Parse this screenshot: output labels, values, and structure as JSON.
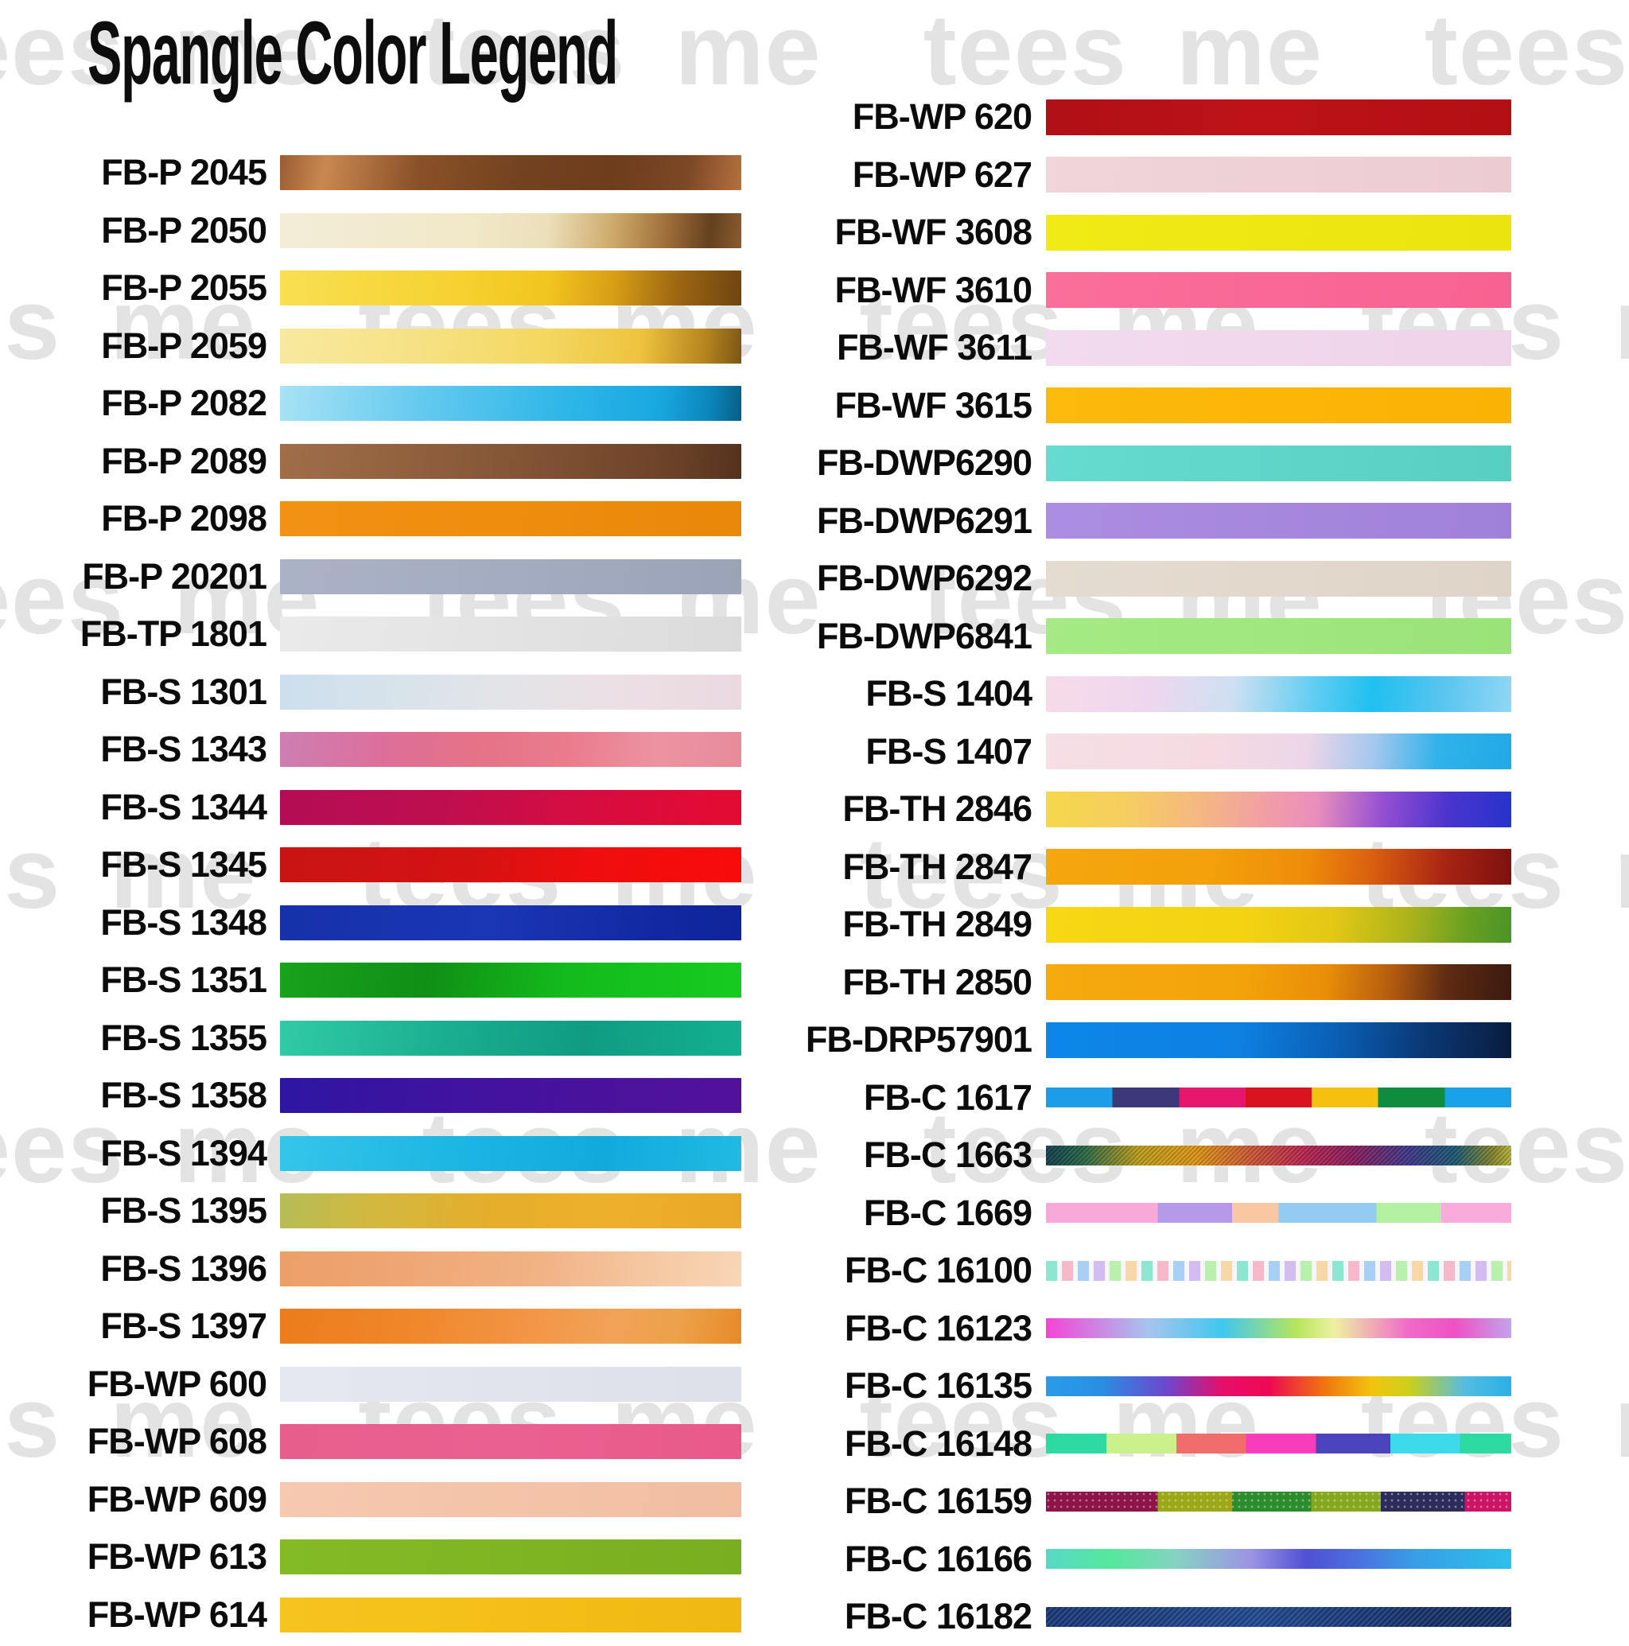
{
  "title": "Spangle Color Legend",
  "watermark": {
    "text": "tees me",
    "color": "#e3e3e3",
    "repeats": 6
  },
  "legend": {
    "left": [
      {
        "label": "FB-P 2045",
        "height": 44,
        "background": "linear-gradient(100deg, #9a5c33 0%, #c98850 10%, #8a5128 30%, #73421f 52%, #6e3d1c 72%, #7c4826 88%, #b5713f 100%)"
      },
      {
        "label": "FB-P 2050",
        "height": 44,
        "background": "linear-gradient(96deg, #f3edd8 0%, #f1e8c8 42%, #ecdfba 58%, #cdaa6a 72%, #9c6c38 84%, #64401f 93%, #8a5c30 100%)"
      },
      {
        "label": "FB-P 2055",
        "height": 44,
        "background": "linear-gradient(96deg, #f9df52 0%, #f6d231 38%, #f2c51f 58%, #d89e16 72%, #9c6612 86%, #6e4410 100%)"
      },
      {
        "label": "FB-P 2059",
        "height": 44,
        "background": "linear-gradient(96deg, #f8e9a0 0%, #f6e182 32%, #f3d75f 58%, #eec33e 78%, #b4841e 92%, #7c5514 100%)"
      },
      {
        "label": "FB-P 2082",
        "height": 44,
        "background": "linear-gradient(96deg, #a8e2f5 0%, #62c9ee 32%, #2eb6e8 62%, #18a8e0 82%, #0b86bb 93%, #075e84 100%)"
      },
      {
        "label": "FB-P 2089",
        "height": 44,
        "background": "linear-gradient(96deg, #a06e49 0%, #8f5f3d 32%, #7d4f31 62%, #6a4128 86%, #55311d 100%)"
      },
      {
        "label": "FB-P 2098",
        "height": 44,
        "background": "linear-gradient(96deg, #f19214 0%, #ee8d0e 50%, #e9870a 100%)"
      },
      {
        "label": "FB-P 20201",
        "height": 44,
        "background": "linear-gradient(96deg, #abb2c7 0%, #a4acc2 50%, #9ba3b8 100%)"
      },
      {
        "label": "FB-TP 1801",
        "height": 44,
        "background": "linear-gradient(96deg, #eaeaea 0%, #e3e3e3 50%, #dbdbdb 100%)"
      },
      {
        "label": "FB-S 1301",
        "height": 44,
        "background": "linear-gradient(96deg, #ccdfee 0%, #d8e3ea 26%, #e4e4e8 50%, #ecdfe4 76%, #ead9e0 100%)"
      },
      {
        "label": "FB-S 1343",
        "height": 44,
        "background": "linear-gradient(96deg, #cd7fb3 0%, #dc6f9b 22%, #e57287 42%, #ea7b8d 62%, #ec93a2 82%, #e78b9b 100%)"
      },
      {
        "label": "FB-S 1344",
        "height": 44,
        "background": "linear-gradient(96deg, #b30d55 0%, #bf0e4f 36%, #d30d42 62%, #df0b37 86%, #e20b33 100%)"
      },
      {
        "label": "FB-S 1345",
        "height": 44,
        "background": "linear-gradient(96deg, #c91414 0%, #d51212 42%, #ee0e0e 66%, #f90b0b 100%)"
      },
      {
        "label": "FB-S 1348",
        "height": 44,
        "background": "linear-gradient(96deg, #1631aa 0%, #1b36b4 46%, #1128a2 82%, #0f249a 100%)"
      },
      {
        "label": "FB-S 1351",
        "height": 44,
        "background": "linear-gradient(96deg, #18a21d 0%, #108f15 32%, #13bb1c 62%, #16cb20 100%)"
      },
      {
        "label": "FB-S 1355",
        "height": 44,
        "background": "linear-gradient(96deg, #30cba6 0%, #1aae90 36%, #109c84 66%, #13b092 100%)"
      },
      {
        "label": "FB-S 1358",
        "height": 44,
        "background": "linear-gradient(96deg, #2d16a2 0%, #3f13a0 36%, #4a129c 70%, #53119a 100%)"
      },
      {
        "label": "FB-S 1394",
        "height": 44,
        "background": "linear-gradient(96deg, #35c6ea 0%, #1eb6e3 36%, #12aadd 70%, #20bae3 100%)"
      },
      {
        "label": "FB-S 1395",
        "height": 44,
        "background": "linear-gradient(96deg, #b5bd58 0%, #d2b83e 20%, #e5ae2b 46%, #eeb02b 72%, #e9a827 100%)"
      },
      {
        "label": "FB-S 1396",
        "height": 44,
        "background": "linear-gradient(96deg, #ec9f68 0%, #efa674 26%, #f1b285 56%, #f5c8a2 80%, #f8d6b6 100%)"
      },
      {
        "label": "FB-S 1397",
        "height": 44,
        "background": "linear-gradient(100deg, #ec7c1b 0%, #ef8628 26%, #f29443 52%, #f2a258 72%, #eda149 86%, #e68a2a 100%)"
      },
      {
        "label": "FB-WP 600",
        "height": 44,
        "background": "linear-gradient(96deg, #e6e8f0 0%, #e2e4ec 50%, #dee0ea 100%)"
      },
      {
        "label": "FB-WP 608",
        "height": 44,
        "background": "linear-gradient(96deg, #e75d8c 0%, #ea6090 50%, #e85a89 100%)"
      },
      {
        "label": "FB-WP 609",
        "height": 44,
        "background": "linear-gradient(96deg, #f6c9b0 0%, #f4c3a8 50%, #f2bda0 100%)"
      },
      {
        "label": "FB-WP 613",
        "height": 44,
        "background": "linear-gradient(96deg, #83ba25 0%, #7fb522 50%, #78ae20 100%)"
      },
      {
        "label": "FB-WP 614",
        "height": 44,
        "background": "linear-gradient(96deg, #f6c41f 0%, #f4bf18 50%, #f0b812 100%)"
      }
    ],
    "right": [
      {
        "label": "FB-WP 620",
        "height": 45,
        "background": "linear-gradient(96deg, #b01016 0%, #bd1218 46%, #b30f14 100%)"
      },
      {
        "label": "FB-WP 627",
        "height": 45,
        "background": "linear-gradient(96deg, #f0d5da 0%, #eed0d6 50%, #ecccd2 100%)"
      },
      {
        "label": "FB-WF 3608",
        "height": 45,
        "background": "linear-gradient(96deg, #f1ea16 0%, #efe712 50%, #ece40e 100%)"
      },
      {
        "label": "FB-WF 3610",
        "height": 45,
        "background": "linear-gradient(96deg, #fa6f9b 0%, #f96896 50%, #f86292 100%)"
      },
      {
        "label": "FB-WF 3611",
        "height": 45,
        "background": "linear-gradient(96deg, #f3dbef 0%, #f1d7ec 50%, #efd3e9 100%)"
      },
      {
        "label": "FB-WF 3615",
        "height": 45,
        "background": "linear-gradient(96deg, #fdba0c 0%, #fcb608 50%, #fab205 100%)"
      },
      {
        "label": "FB-DWP6290",
        "height": 45,
        "background": "linear-gradient(96deg, #66dbd0 0%, #5ed5c9 50%, #56cfc2 100%)"
      },
      {
        "label": "FB-DWP6291",
        "height": 45,
        "background": "linear-gradient(96deg, #ab8de2 0%, #a687de 50%, #a081da 100%)"
      },
      {
        "label": "FB-DWP6292",
        "height": 45,
        "background": "linear-gradient(96deg, #e5dcd1 0%, #e2d8cc 50%, #dfd4c8 100%)"
      },
      {
        "label": "FB-DWP6841",
        "height": 45,
        "background": "linear-gradient(96deg, #a5ea84 0%, #a0e77e 50%, #9ae378 100%)"
      },
      {
        "label": "FB-S 1404",
        "height": 45,
        "background": "linear-gradient(96deg, #f7dbe9 0%, #eed7ee 22%, #cfe0f2 40%, #5ecdf2 58%, #1fc0f0 70%, #55c4ef 84%, #90d6f5 100%)"
      },
      {
        "label": "FB-S 1407",
        "height": 45,
        "background": "linear-gradient(96deg, #f7dfe6 0%, #f5dae2 36%, #ecd6e8 56%, #a6c8ee 70%, #30b2ea 84%, #22a9e6 100%)"
      },
      {
        "label": "FB-TH 2846",
        "height": 45,
        "background": "linear-gradient(96deg, #f5d84a 0%, #f6cd62 18%, #f4b389 36%, #f19da8 48%, #ea8fbc 58%, #9550d2 72%, #4b34ce 86%, #2534cc 100%)"
      },
      {
        "label": "FB-TH 2847",
        "height": 45,
        "background": "linear-gradient(96deg, #f5a70f 0%, #f3a00b 36%, #ee8c09 56%, #d95f10 70%, #a62313 86%, #7e100e 100%)"
      },
      {
        "label": "FB-TH 2849",
        "height": 45,
        "background": "linear-gradient(96deg, #f6d815 0%, #f4d312 42%, #e2c715 62%, #aab31c 78%, #6aa022 90%, #4a9426 100%)"
      },
      {
        "label": "FB-TH 2850",
        "height": 45,
        "background": "linear-gradient(96deg, #f5aa0e 0%, #f3a30a 42%, #ea8e08 60%, #b45c10 74%, #5e2a12 86%, #3c1a10 100%)"
      },
      {
        "label": "FB-DRP57901",
        "height": 45,
        "background": "linear-gradient(96deg, #0c87e8 0%, #0d80e2 42%, #0a5cb0 64%, #0a3a78 80%, #0a2550 94%, #081c3c 100%)"
      },
      {
        "label": "FB-C 1617",
        "height": 25,
        "background": "linear-gradient(90deg, #1d9ce8 0%, #1d9ce8 14.3%, #3a3a78 14.3%, #3a3a78 28.6%, #e6176c 28.6%, #e6176c 42.9%, #d91420 42.9%, #d91420 57.1%, #f4c20e 57.1%, #f4c20e 71.4%, #108c3e 71.4%, #108c3e 85.7%, #1aa2e8 85.7%, #1aa2e8 100%)"
      },
      {
        "label": "FB-C 1663",
        "height": 25,
        "background": "repeating-linear-gradient(135deg, rgba(0,0,0,0.18) 0px, rgba(0,0,0,0.18) 2px, rgba(255,255,255,0.06) 2px, rgba(255,255,255,0.06) 4px), linear-gradient(90deg, #14404e 0%, #2a6a4a 8%, #c0a01e 20%, #e09a18 32%, #d05c36 44%, #bc2850 55%, #8c2060 66%, #403a8c 78%, #1c5c74 88%, #86882e 96%, #b8b83c 100%)"
      },
      {
        "label": "FB-C 1669",
        "height": 25,
        "background": "linear-gradient(90deg, #f8a8d9 0%, #f8a8d9 24%, #b49ae8 24%, #b49ae8 40%, #f9c8a2 40%, #f9c8a2 50%, #92ccf2 50%, #92ccf2 71%, #b4f0a2 71%, #b4f0a2 85%, #f9abdb 85%, #f9abdb 100%)"
      },
      {
        "label": "FB-C 16100",
        "height": 25,
        "background": "repeating-linear-gradient(90deg, #8ae8d0 0px, #8ae8d0 14px, #f6f6f8 14px, #f6f6f8 20px, #f8b8cc 20px, #f8b8cc 34px, #f6f6f8 34px, #f6f6f8 40px, #a8d0f6 40px, #a8d0f6 54px, #f6f6f8 54px, #f6f6f8 60px, #d2bcf2 60px, #d2bcf2 74px, #f6f6f8 74px, #f6f6f8 80px, #baf0ae 80px, #baf0ae 94px, #f6f6f8 94px, #f6f6f8 100px, #f8d8a6 100px, #f8d8a6 114px, #f6f6f8 114px, #f6f6f8 120px)"
      },
      {
        "label": "FB-C 16123",
        "height": 25,
        "background": "linear-gradient(90deg, #f544d6 0%, #a6c4ef 22%, #40c8ee 38%, #b8e55c 54%, #eef0a2 62%, #f06ac8 78%, #ee52c4 88%, #c2a4ec 100%)"
      },
      {
        "label": "FB-C 16135",
        "height": 25,
        "background": "linear-gradient(90deg, #2a9ce8 0%, #2a8ee2 12%, #6e46cc 26%, #e60e6a 38%, #ee0a52 48%, #f0760e 60%, #f2c40e 70%, #cdd01a 78%, #55bce0 90%, #2ab0e8 100%)"
      },
      {
        "label": "FB-C 16148",
        "height": 25,
        "background": "linear-gradient(90deg, #2cdaa2 0%, #2cdaa2 13%, #caf18c 13%, #caf18c 28%, #f06d6c 28%, #f06d6c 43%, #f93cba 43%, #f93cba 58%, #4c44ba 58%, #4c44ba 74%, #3cdaea 74%, #3cdaea 89%, #2cdaa2 89%, #2cdaa2 100%)"
      },
      {
        "label": "FB-C 16159",
        "height": 25,
        "background": "radial-gradient(circle at 3px 3px, rgba(255,255,255,0.4) 1px, rgba(0,0,0,0) 1.8px) 0 0 / 8px 8px, linear-gradient(90deg, #8c1448 0%, #8c1448 24%, #9aa818 24%, #9aa818 40%, #2c8c2c 40%, #2c8c2c 57%, #86a81e 57%, #86a81e 72%, #2c2c5a 72%, #2c2c5a 90%, #cc1466 90%, #cc1466 100%)"
      },
      {
        "label": "FB-C 16166",
        "height": 25,
        "background": "linear-gradient(90deg, #58d8c8 0%, #55e89c 14%, #86d2c2 28%, #9c94e4 44%, #5050d4 56%, #4a74e0 68%, #38a0e6 80%, #2cc0ea 100%)"
      },
      {
        "label": "FB-C 16182",
        "height": 25,
        "background": "repeating-linear-gradient(135deg, rgba(255,255,255,0.12) 0px, rgba(255,255,255,0.12) 2px, rgba(0,0,0,0) 2px, rgba(0,0,0,0) 5px), linear-gradient(95deg, #16336e 0%, #1d4488 45%, #142e63 80%, #122a5c 100%)"
      }
    ]
  },
  "chart_data": {
    "type": "table",
    "title": "Spangle Color Legend",
    "columns": [
      "code",
      "approx_dominant_color"
    ],
    "rows": [
      [
        "FB-P 2045",
        "#8a5128"
      ],
      [
        "FB-P 2050",
        "#f1e8c8"
      ],
      [
        "FB-P 2055",
        "#f2c51f"
      ],
      [
        "FB-P 2059",
        "#f3d75f"
      ],
      [
        "FB-P 2082",
        "#2eb6e8"
      ],
      [
        "FB-P 2089",
        "#7d4f31"
      ],
      [
        "FB-P 2098",
        "#ee8d0e"
      ],
      [
        "FB-P 20201",
        "#a4acc2"
      ],
      [
        "FB-TP 1801",
        "#e3e3e3"
      ],
      [
        "FB-S 1301",
        "#e4e4e8"
      ],
      [
        "FB-S 1343",
        "#e57287"
      ],
      [
        "FB-S 1344",
        "#d30d42"
      ],
      [
        "FB-S 1345",
        "#ee0e0e"
      ],
      [
        "FB-S 1348",
        "#1631aa"
      ],
      [
        "FB-S 1351",
        "#13bb1c"
      ],
      [
        "FB-S 1355",
        "#1aae90"
      ],
      [
        "FB-S 1358",
        "#4a129c"
      ],
      [
        "FB-S 1394",
        "#1eb6e3"
      ],
      [
        "FB-S 1395",
        "#e5ae2b"
      ],
      [
        "FB-S 1396",
        "#f1b285"
      ],
      [
        "FB-S 1397",
        "#f29443"
      ],
      [
        "FB-WP 600",
        "#e2e4ec"
      ],
      [
        "FB-WP 608",
        "#ea6090"
      ],
      [
        "FB-WP 609",
        "#f4c3a8"
      ],
      [
        "FB-WP 613",
        "#7fb522"
      ],
      [
        "FB-WP 614",
        "#f4bf18"
      ],
      [
        "FB-WP 620",
        "#bd1218"
      ],
      [
        "FB-WP 627",
        "#eed0d6"
      ],
      [
        "FB-WF 3608",
        "#efe712"
      ],
      [
        "FB-WF 3610",
        "#f96896"
      ],
      [
        "FB-WF 3611",
        "#f1d7ec"
      ],
      [
        "FB-WF 3615",
        "#fcb608"
      ],
      [
        "FB-DWP6290",
        "#5ed5c9"
      ],
      [
        "FB-DWP6291",
        "#a687de"
      ],
      [
        "FB-DWP6292",
        "#e2d8cc"
      ],
      [
        "FB-DWP6841",
        "#a0e77e"
      ],
      [
        "FB-S 1404",
        "#5ecdf2"
      ],
      [
        "FB-S 1407",
        "#f5dae2"
      ],
      [
        "FB-TH 2846",
        "#f19da8"
      ],
      [
        "FB-TH 2847",
        "#ee8c09"
      ],
      [
        "FB-TH 2849",
        "#f4d312"
      ],
      [
        "FB-TH 2850",
        "#f3a30a"
      ],
      [
        "FB-DRP57901",
        "#0d80e2"
      ],
      [
        "FB-C 1617",
        "#e6176c"
      ],
      [
        "FB-C 1663",
        "#bc2850"
      ],
      [
        "FB-C 1669",
        "#f8a8d9"
      ],
      [
        "FB-C 16100",
        "#d2bcf2"
      ],
      [
        "FB-C 16123",
        "#40c8ee"
      ],
      [
        "FB-C 16135",
        "#ee0a52"
      ],
      [
        "FB-C 16148",
        "#f93cba"
      ],
      [
        "FB-C 16159",
        "#8c1448"
      ],
      [
        "FB-C 16166",
        "#5050d4"
      ],
      [
        "FB-C 16182",
        "#1d4488"
      ]
    ]
  }
}
